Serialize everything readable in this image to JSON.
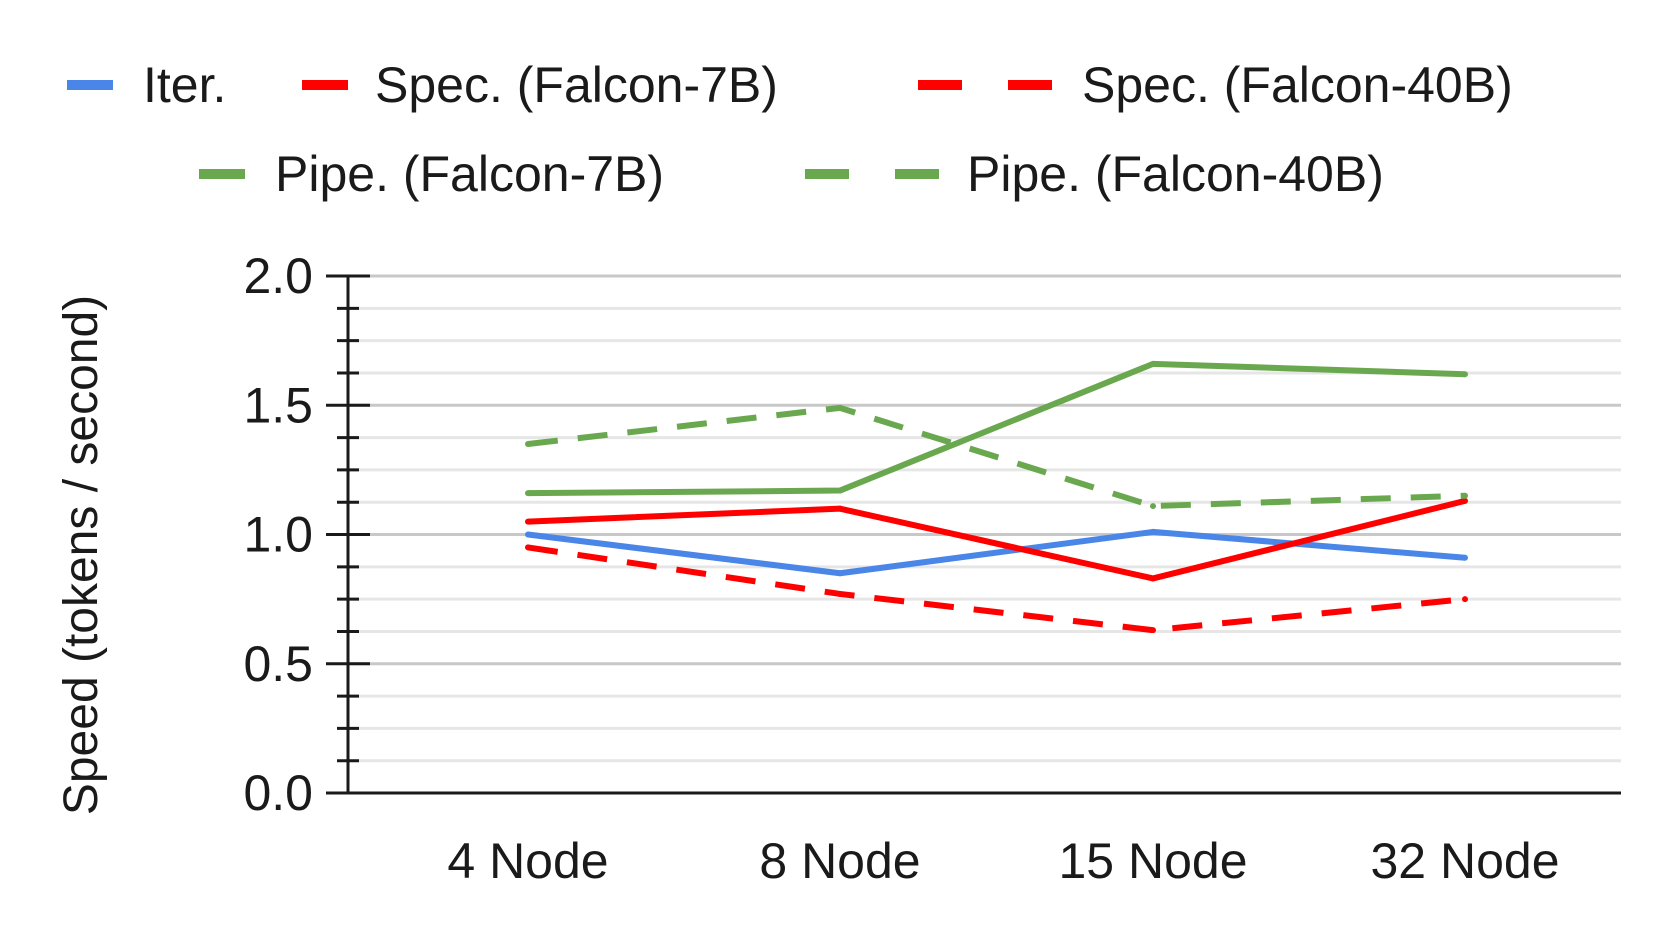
{
  "chart_data": {
    "type": "line",
    "title": "",
    "xlabel": "",
    "ylabel": "Speed (tokens / second)",
    "ylim": [
      0,
      2.0
    ],
    "y_ticks": [
      "0.0",
      "0.5",
      "1.0",
      "1.5",
      "2.0"
    ],
    "minor_grid_step": 0.167,
    "grid": true,
    "legend_position": "top",
    "categories": [
      "4 Node",
      "8 Node",
      "15 Node",
      "32 Node"
    ],
    "series": [
      {
        "name": "Iter.",
        "color": "#4a86e8",
        "dashed": false,
        "values": [
          1.0,
          0.85,
          1.01,
          0.91
        ]
      },
      {
        "name": "Spec. (Falcon-7B)",
        "color": "#ff0000",
        "dashed": false,
        "values": [
          1.05,
          1.1,
          0.83,
          1.13
        ]
      },
      {
        "name": "Spec. (Falcon-40B)",
        "color": "#ff0000",
        "dashed": true,
        "values": [
          0.95,
          0.77,
          0.63,
          0.75
        ]
      },
      {
        "name": "Pipe. (Falcon-7B)",
        "color": "#6aa84f",
        "dashed": false,
        "values": [
          1.16,
          1.17,
          1.66,
          1.62
        ]
      },
      {
        "name": "Pipe. (Falcon-40B)",
        "color": "#6aa84f",
        "dashed": true,
        "values": [
          1.35,
          1.49,
          1.11,
          1.15
        ]
      }
    ]
  }
}
